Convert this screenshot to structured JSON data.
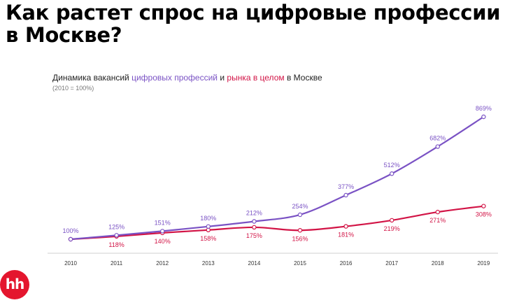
{
  "headline": "Как растет спрос на цифровые профессии в Москве?",
  "subtitle": {
    "part1": "Динамика вакансий ",
    "digital": "цифровых профессий",
    "part2": " и ",
    "market": "рынка в целом",
    "part3": " в Москве"
  },
  "note": "(2010 = 100%)",
  "logo": "hh",
  "colors": {
    "digital": "#7a52c4",
    "market": "#d21446",
    "axis": "#cfcfcf"
  },
  "chart_data": {
    "type": "line",
    "x": [
      "2010",
      "2011",
      "2012",
      "2013",
      "2014",
      "2015",
      "2016",
      "2017",
      "2018",
      "2019"
    ],
    "series": [
      {
        "name": "цифровых профессий",
        "values": [
          100,
          125,
          151,
          180,
          212,
          254,
          377,
          512,
          682,
          869
        ],
        "labels": [
          "100%",
          "125%",
          "151%",
          "180%",
          "212%",
          "254%",
          "377%",
          "512%",
          "682%",
          "869%"
        ]
      },
      {
        "name": "рынка в целом",
        "values": [
          100,
          118,
          140,
          158,
          175,
          156,
          181,
          219,
          271,
          308
        ],
        "labels": [
          "",
          "118%",
          "140%",
          "158%",
          "175%",
          "156%",
          "181%",
          "219%",
          "271%",
          "308%"
        ]
      }
    ],
    "ylim": [
      100,
      869
    ],
    "grid": false,
    "legend": "none"
  }
}
